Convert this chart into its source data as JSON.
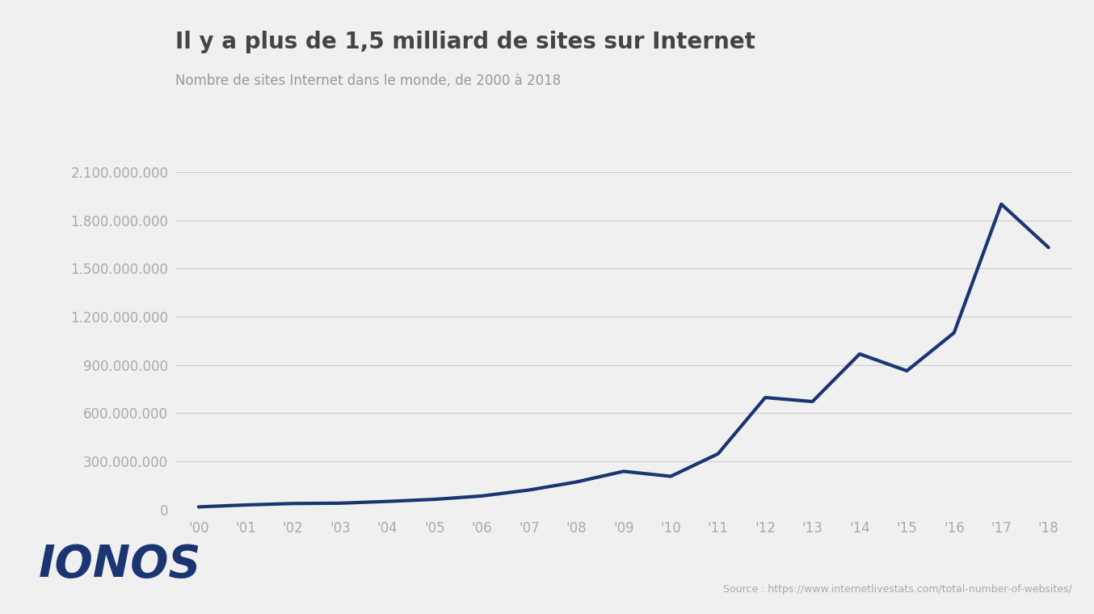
{
  "title": "Il y a plus de 1,5 milliard de sites sur Internet",
  "subtitle": "Nombre de sites Internet dans le monde, de 2000 à 2018",
  "source": "Source : https://www.internetlivestats.com/total-number-of-websites/",
  "logo_text": "IONOS",
  "background_color": "#f0f0f0",
  "line_color": "#1a3571",
  "grid_color": "#cccccc",
  "title_color": "#444444",
  "subtitle_color": "#999999",
  "axis_color": "#aaaaaa",
  "years": [
    2000,
    2001,
    2002,
    2003,
    2004,
    2005,
    2006,
    2007,
    2008,
    2009,
    2010,
    2011,
    2012,
    2013,
    2014,
    2015,
    2016,
    2017,
    2018
  ],
  "values": [
    17000000,
    29000000,
    38000000,
    40000000,
    51000000,
    64000000,
    85000000,
    122000000,
    172000000,
    238000000,
    207000000,
    347000000,
    697000000,
    672000000,
    968000000,
    863000000,
    1100000000,
    1900000000,
    1630000000
  ],
  "ylim": [
    0,
    2100000000
  ],
  "yticks": [
    0,
    300000000,
    600000000,
    900000000,
    1200000000,
    1500000000,
    1800000000,
    2100000000
  ],
  "line_width": 3.0
}
